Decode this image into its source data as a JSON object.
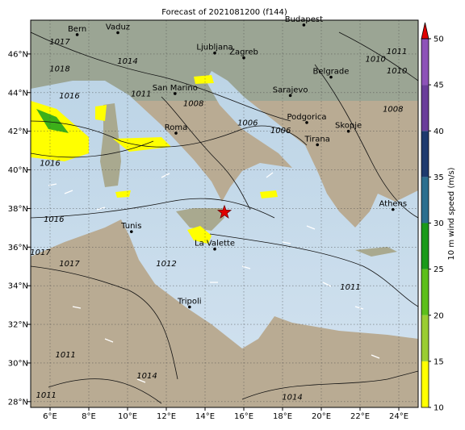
{
  "title": "Forecast of 2021081200 (f144)",
  "map": {
    "xlim": [
      5,
      25
    ],
    "ylim": [
      27.7,
      47.75
    ],
    "xticks": [
      {
        "value": 6,
        "label": "6°E"
      },
      {
        "value": 8,
        "label": "8°E"
      },
      {
        "value": 10,
        "label": "10°E"
      },
      {
        "value": 12,
        "label": "12°E"
      },
      {
        "value": 14,
        "label": "14°E"
      },
      {
        "value": 16,
        "label": "16°E"
      },
      {
        "value": 18,
        "label": "18°E"
      },
      {
        "value": 20,
        "label": "20°E"
      },
      {
        "value": 22,
        "label": "22°E"
      },
      {
        "value": 24,
        "label": "24°E"
      }
    ],
    "yticks": [
      {
        "value": 28,
        "label": "28°N"
      },
      {
        "value": 30,
        "label": "30°N"
      },
      {
        "value": 32,
        "label": "32°N"
      },
      {
        "value": 34,
        "label": "34°N"
      },
      {
        "value": 36,
        "label": "36°N"
      },
      {
        "value": 38,
        "label": "38°N"
      },
      {
        "value": 40,
        "label": "40°N"
      },
      {
        "value": 42,
        "label": "42°N"
      },
      {
        "value": 44,
        "label": "44°N"
      },
      {
        "value": 46,
        "label": "46°N"
      }
    ],
    "cities": [
      {
        "name": "Bern",
        "lon": 7.4,
        "lat": 47.0
      },
      {
        "name": "Vaduz",
        "lon": 9.5,
        "lat": 47.1
      },
      {
        "name": "Budapest",
        "lon": 19.1,
        "lat": 47.5
      },
      {
        "name": "Ljubljana",
        "lon": 14.5,
        "lat": 46.05
      },
      {
        "name": "Zagreb",
        "lon": 16.0,
        "lat": 45.8
      },
      {
        "name": "Belgrade",
        "lon": 20.5,
        "lat": 44.8
      },
      {
        "name": "Sarajevo",
        "lon": 18.4,
        "lat": 43.85
      },
      {
        "name": "San Marino",
        "lon": 12.45,
        "lat": 43.95
      },
      {
        "name": "Roma",
        "lon": 12.5,
        "lat": 41.9
      },
      {
        "name": "Podgorica",
        "lon": 19.25,
        "lat": 42.45
      },
      {
        "name": "Skopje",
        "lon": 21.4,
        "lat": 42.0
      },
      {
        "name": "Tirana",
        "lon": 19.8,
        "lat": 41.3
      },
      {
        "name": "Athens",
        "lon": 23.7,
        "lat": 37.95
      },
      {
        "name": "Tunis",
        "lon": 10.2,
        "lat": 36.8
      },
      {
        "name": "La Valette",
        "lon": 14.5,
        "lat": 35.9
      },
      {
        "name": "Tripoli",
        "lon": 13.2,
        "lat": 32.9
      }
    ],
    "isobar_labels": [
      {
        "text": "1017",
        "lon": 6.5,
        "lat": 46.5
      },
      {
        "text": "1014",
        "lon": 10.0,
        "lat": 45.5
      },
      {
        "text": "1018",
        "lon": 6.5,
        "lat": 45.1
      },
      {
        "text": "1010",
        "lon": 22.8,
        "lat": 45.6
      },
      {
        "text": "1011",
        "lon": 23.9,
        "lat": 46.0
      },
      {
        "text": "1010",
        "lon": 23.9,
        "lat": 45.0
      },
      {
        "text": "1011",
        "lon": 10.7,
        "lat": 43.8
      },
      {
        "text": "1016",
        "lon": 7.0,
        "lat": 43.7
      },
      {
        "text": "1008",
        "lon": 13.4,
        "lat": 43.3
      },
      {
        "text": "1006",
        "lon": 16.2,
        "lat": 42.3
      },
      {
        "text": "1006",
        "lon": 17.9,
        "lat": 41.9
      },
      {
        "text": "1008",
        "lon": 23.7,
        "lat": 43.0
      },
      {
        "text": "1016",
        "lon": 6.0,
        "lat": 40.2
      },
      {
        "text": "1016",
        "lon": 6.2,
        "lat": 37.3
      },
      {
        "text": "1017",
        "lon": 5.5,
        "lat": 35.6
      },
      {
        "text": "1017",
        "lon": 7.0,
        "lat": 35.0
      },
      {
        "text": "1012",
        "lon": 12.0,
        "lat": 35.0
      },
      {
        "text": "1011",
        "lon": 21.5,
        "lat": 33.8
      },
      {
        "text": "1011",
        "lon": 6.8,
        "lat": 30.3
      },
      {
        "text": "1014",
        "lon": 11.0,
        "lat": 29.2
      },
      {
        "text": "1014",
        "lon": 18.5,
        "lat": 28.1
      },
      {
        "text": "1011",
        "lon": 5.8,
        "lat": 28.2
      }
    ],
    "marker": {
      "lon": 15.0,
      "lat": 37.8
    }
  },
  "colorbar": {
    "label": "10 m wind speed (m/s)",
    "ticks": [
      10,
      15,
      20,
      25,
      30,
      35,
      40,
      45,
      50
    ],
    "colors": [
      "#ffff00",
      "#9acd32",
      "#5cbf1a",
      "#1a9a1a",
      "#2c6f8f",
      "#1e3a6e",
      "#6a3d9a",
      "#8d52b8"
    ],
    "extend_color": "#e00000"
  }
}
